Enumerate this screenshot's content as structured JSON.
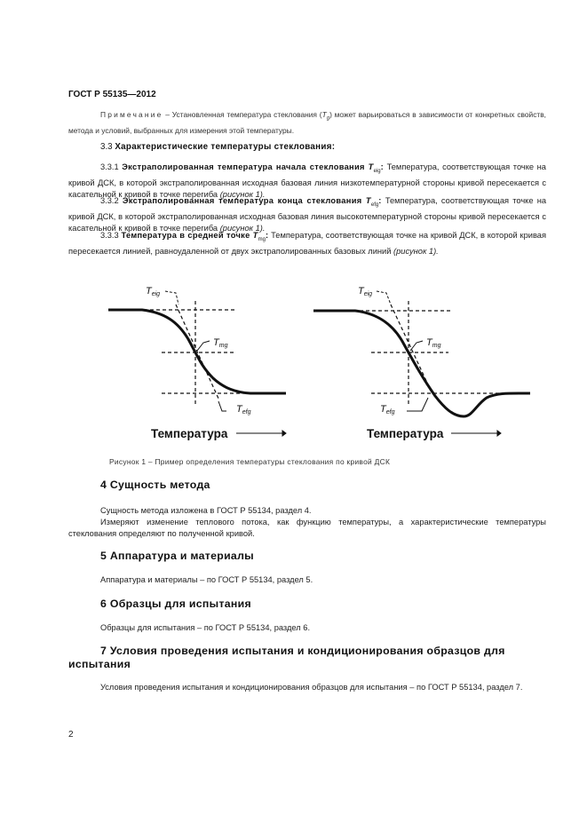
{
  "header": {
    "doc_code": "ГОСТ Р 55135—2012"
  },
  "note": {
    "label": "Примечание",
    "text_before": " – Установленная температура стеклования (",
    "symbol": "T",
    "symbol_sub": "g",
    "text_after": ") может варьироваться в зависимости от конкретных свойств, метода и условий, выбранных для измерения этой температуры."
  },
  "section_3_3": {
    "number": "3.3 ",
    "title": "Характеристические температуры стеклования:"
  },
  "definitions": [
    {
      "number": "3.3.1 ",
      "term": "Экстраполированная температура начала стеклования ",
      "symbol": "T",
      "symbol_sub": "eig",
      "colon": ":",
      "text": " Температура, соответствующая точке на кривой ДСК, в которой экстраполированная исходная базовая линия низкотемпературной стороны кривой пересекается с касательной  к кривой в точке перегиба ",
      "ref": "(рисунок 1)."
    },
    {
      "number": "3.3.2 ",
      "term": "Экстраполированная температура конца стеклования ",
      "symbol": "T",
      "symbol_sub": "efg",
      "colon": ":",
      "text": " Температура, соответствующая точке на кривой ДСК, в которой экстраполированная исходная базовая линия высокотемпературной стороны кривой пересекается с касательной к кривой в точке перегиба ",
      "ref": "(рисунок 1)."
    },
    {
      "number": "3.3.3 ",
      "term": "Температура в средней точке ",
      "symbol": "T",
      "symbol_sub": "mg",
      "colon": ":",
      "text": " Температура, соответствующая точке на кривой ДСК, в которой кривая пересекается  линией, равноудаленной от двух экстраполированных базовых линий ",
      "ref": "(рисунок 1)."
    }
  ],
  "figure": {
    "labels": {
      "t": "T",
      "eig": "eig",
      "mg": "mg",
      "efg": "efg"
    },
    "axis_label": "Температура",
    "caption": "Рисунок 1 – Пример определения температуры стеклования по кривой ДСК"
  },
  "sections": [
    {
      "heading": "4 Сущность метода",
      "paragraphs": [
        "Сущность метода изложена в ГОСТ Р 55134, раздел 4.",
        "Измеряют изменение теплового потока,  как функцию температуры,  а характеристические температуры стеклования определяют по полученной кривой."
      ]
    },
    {
      "heading": "5 Аппаратура и материалы",
      "paragraphs": [
        "Аппаратура и материалы – по ГОСТ Р 55134, раздел 5."
      ]
    },
    {
      "heading": "6 Образцы для испытания",
      "paragraphs": [
        "Образцы для испытания – по ГОСТ Р 55134, раздел 6."
      ]
    },
    {
      "heading": "7 Условия проведения  испытания и кондиционирования образцов для испытания",
      "paragraphs": [
        " Условия проведения  испытания и кондиционирования образцов для испытания –  по  ГОСТ Р 55134, раздел 7."
      ]
    }
  ],
  "page_number": "2"
}
